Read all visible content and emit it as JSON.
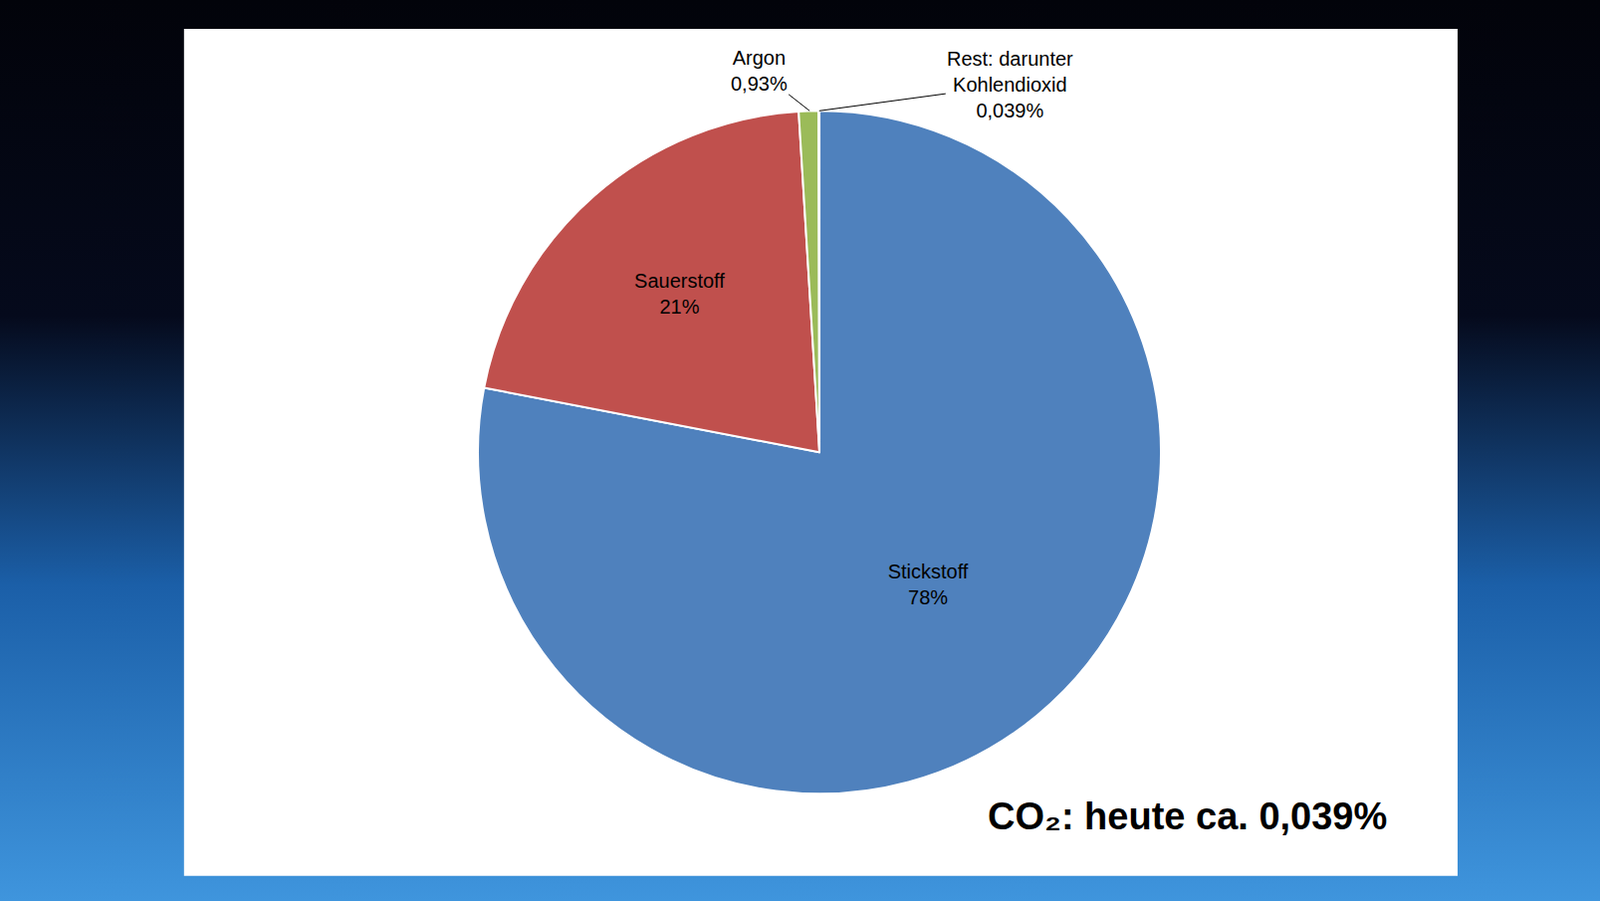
{
  "chart_data": {
    "type": "pie",
    "categories": [
      "Stickstoff",
      "Sauerstoff",
      "Argon",
      "Rest: darunter Kohlendioxid"
    ],
    "values": [
      78,
      21,
      0.93,
      0.039
    ],
    "value_labels": [
      "78%",
      "21%",
      "0,93%",
      "0,039%"
    ],
    "colors": [
      "#4f81bd",
      "#c0504d",
      "#9bbb59",
      "#8064a2"
    ],
    "data_labels": true,
    "annotations": [
      "CO₂: heute ca. 0,039%"
    ]
  }
}
